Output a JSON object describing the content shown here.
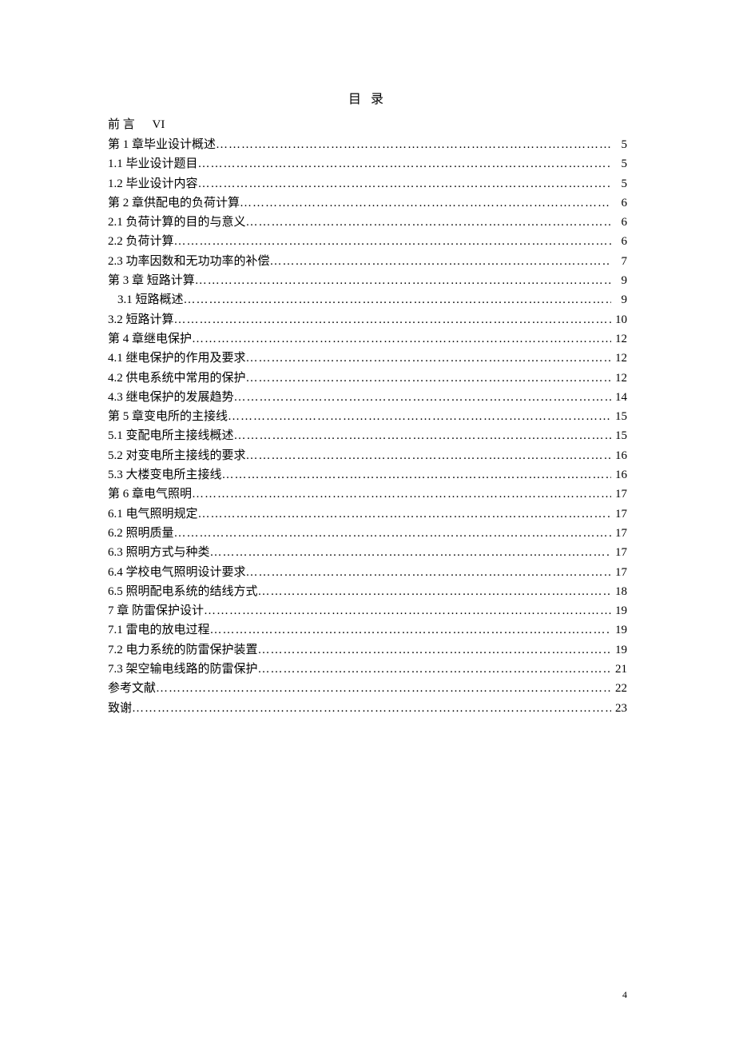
{
  "title": "目 录",
  "preface": {
    "label": "前 言",
    "page": "VI"
  },
  "entries": [
    {
      "label": "第 1 章毕业设计概述",
      "page": "5",
      "indent": 0
    },
    {
      "label": "1.1 毕业设计题目",
      "page": "5",
      "indent": 0
    },
    {
      "label": "1.2 毕业设计内容",
      "page": "5",
      "indent": 0
    },
    {
      "label": "第 2 章供配电的负荷计算",
      "page": "6",
      "indent": 0
    },
    {
      "label": "2.1 负荷计算的目的与意义",
      "page": "6",
      "indent": 0
    },
    {
      "label": "2.2 负荷计算",
      "page": "6",
      "indent": 0
    },
    {
      "label": "2.3 功率因数和无功功率的补偿",
      "page": "7",
      "indent": 0
    },
    {
      "label": "第 3 章  短路计算",
      "page": "9",
      "indent": 0
    },
    {
      "label": "3.1 短路概述",
      "page": "9",
      "indent": 12
    },
    {
      "label": "3.2 短路计算",
      "page": "10",
      "indent": 0
    },
    {
      "label": "第 4 章继电保护",
      "page": "12",
      "indent": 0
    },
    {
      "label": "4.1 继电保护的作用及要求",
      "page": "12",
      "indent": 0
    },
    {
      "label": "4.2 供电系统中常用的保护",
      "page": "12",
      "indent": 0
    },
    {
      "label": "4.3 继电保护的发展趋势",
      "page": "14",
      "indent": 0
    },
    {
      "label": "第 5 章变电所的主接线",
      "page": "15",
      "indent": 0
    },
    {
      "label": "5.1 变配电所主接线概述",
      "page": "15",
      "indent": 0
    },
    {
      "label": "5.2 对变电所主接线的要求",
      "page": "16",
      "indent": 0
    },
    {
      "label": "5.3 大楼变电所主接线",
      "page": "16",
      "indent": 0
    },
    {
      "label": "第 6 章电气照明",
      "page": "17",
      "indent": 0
    },
    {
      "label": "6.1 电气照明规定",
      "page": "17",
      "indent": 0
    },
    {
      "label": "6.2 照明质量",
      "page": "17",
      "indent": 0
    },
    {
      "label": "6.3 照明方式与种类",
      "page": "17",
      "indent": 0
    },
    {
      "label": "6.4 学校电气照明设计要求",
      "page": "17",
      "indent": 0
    },
    {
      "label": "6.5 照明配电系统的结线方式",
      "page": "18",
      "indent": 0
    },
    {
      "label": "7 章  防雷保护设计",
      "page": "19",
      "indent": 0
    },
    {
      "label": "7.1 雷电的放电过程",
      "page": "19",
      "indent": 0
    },
    {
      "label": "7.2 电力系统的防雷保护装置",
      "page": "19",
      "indent": 0
    },
    {
      "label": "7.3 架空输电线路的防雷保护",
      "page": "21",
      "indent": 0
    },
    {
      "label": "参考文献",
      "page": "22",
      "indent": 0
    },
    {
      "label": "致谢",
      "page": "23",
      "indent": 0
    }
  ],
  "pageNumber": "4",
  "style": {
    "fontSize": 15,
    "lineHeight": 1.62,
    "textColor": "#000000",
    "backgroundColor": "#ffffff"
  }
}
